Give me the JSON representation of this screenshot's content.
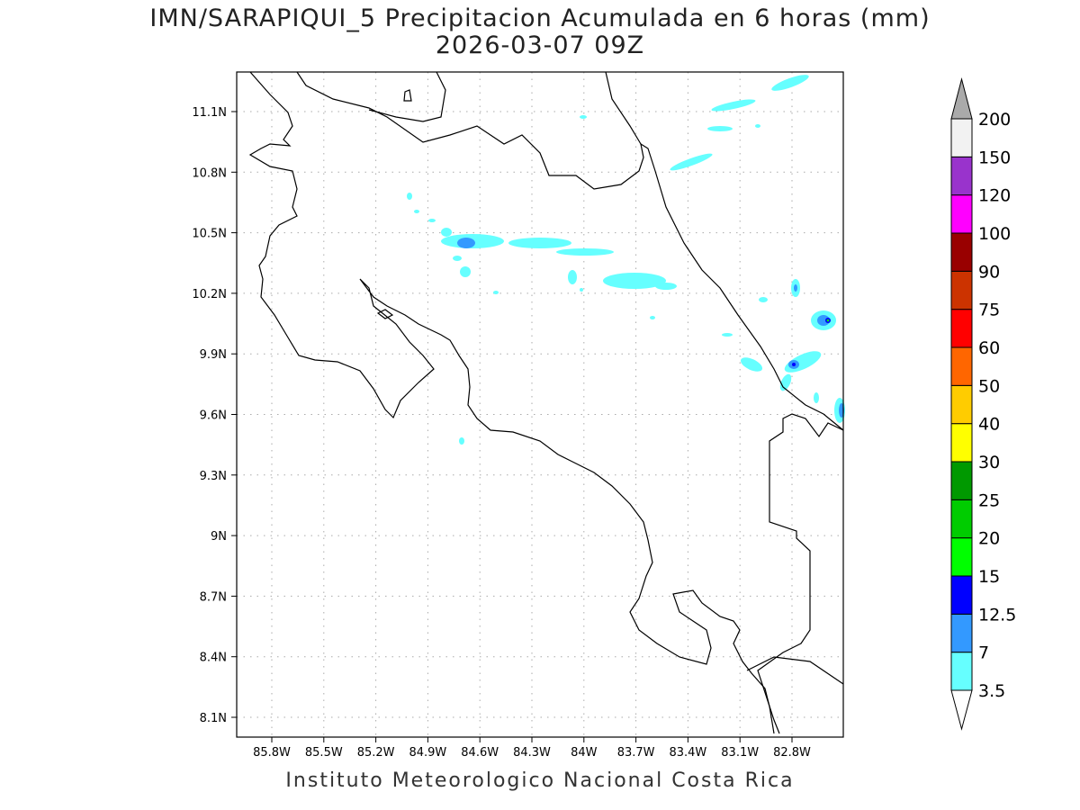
{
  "title": "IMN/SARAPIQUI_5 Precipitacion Acumulada en 6 horas (mm)",
  "subtitle": "2026-03-07 09Z",
  "footer": "Instituto Meteorologico Nacional Costa Rica",
  "lat_ticks": [
    "11.1N",
    "10.8N",
    "10.5N",
    "10.2N",
    "9.9N",
    "9.6N",
    "9.3N",
    "9N",
    "8.7N",
    "8.4N",
    "8.1N"
  ],
  "lon_ticks": [
    "85.8W",
    "85.5W",
    "85.2W",
    "84.9W",
    "84.6W",
    "84.3W",
    "84W",
    "83.7W",
    "83.4W",
    "83.1W",
    "82.8W"
  ],
  "colorbar": {
    "labels": [
      "3.5",
      "7",
      "12.5",
      "15",
      "20",
      "25",
      "30",
      "40",
      "50",
      "60",
      "75",
      "90",
      "100",
      "120",
      "150",
      "200"
    ],
    "colors": [
      "#66ffff",
      "#3399ff",
      "#0000ff",
      "#00ff00",
      "#00cc00",
      "#009900",
      "#ffff00",
      "#ffcc00",
      "#ff6600",
      "#ff0000",
      "#cc3300",
      "#990000",
      "#ff00ff",
      "#9933cc",
      "#f2f2f2"
    ],
    "over_color": "#aaaaaa",
    "under_color": "#ffffff"
  }
}
